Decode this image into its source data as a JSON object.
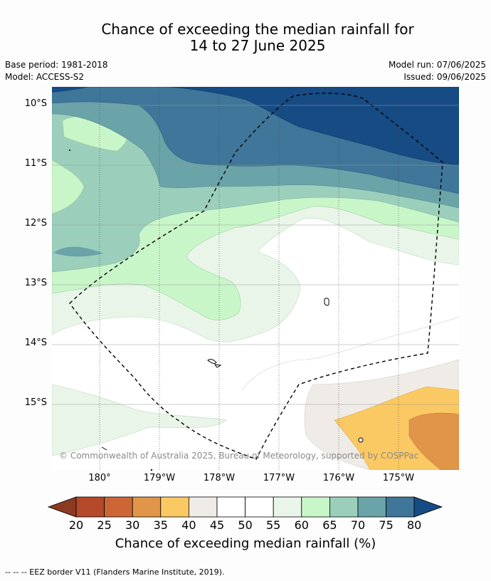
{
  "title": {
    "line1": "Chance of exceeding the median rainfall for",
    "line2": "14 to 27 June 2025"
  },
  "meta": {
    "base_period": "Base period: 1981-2018",
    "model": "Model: ACCESS-S2",
    "model_run": "Model run: 07/06/2025",
    "issued": "Issued: 09/06/2025"
  },
  "map": {
    "lat_labels": [
      "10°S",
      "11°S",
      "12°S",
      "13°S",
      "14°S",
      "15°S"
    ],
    "lon_labels": [
      "180°",
      "179°W",
      "178°W",
      "177°W",
      "176°W",
      "175°W"
    ],
    "copyright": "© Commonwealth of Australia 2025, Bureau of Meteorology, supported by COSPPac"
  },
  "legend": {
    "tick_labels": [
      "20",
      "25",
      "30",
      "35",
      "40",
      "45",
      "50",
      "55",
      "60",
      "65",
      "70",
      "75",
      "80"
    ],
    "colors": [
      "#8c3a22",
      "#b5492a",
      "#cd6635",
      "#e09548",
      "#fbc963",
      "#efebe7",
      "#ffffff",
      "#ffffff",
      "#eaf5ea",
      "#c9f6c9",
      "#9bcfbb",
      "#6aa3a8",
      "#3f7699",
      "#164b84"
    ],
    "title": "Chance of exceeding median rainfall (%)"
  },
  "footer": "--  --  -- EEZ border V11 (Flanders Marine Institute, 2019)."
}
